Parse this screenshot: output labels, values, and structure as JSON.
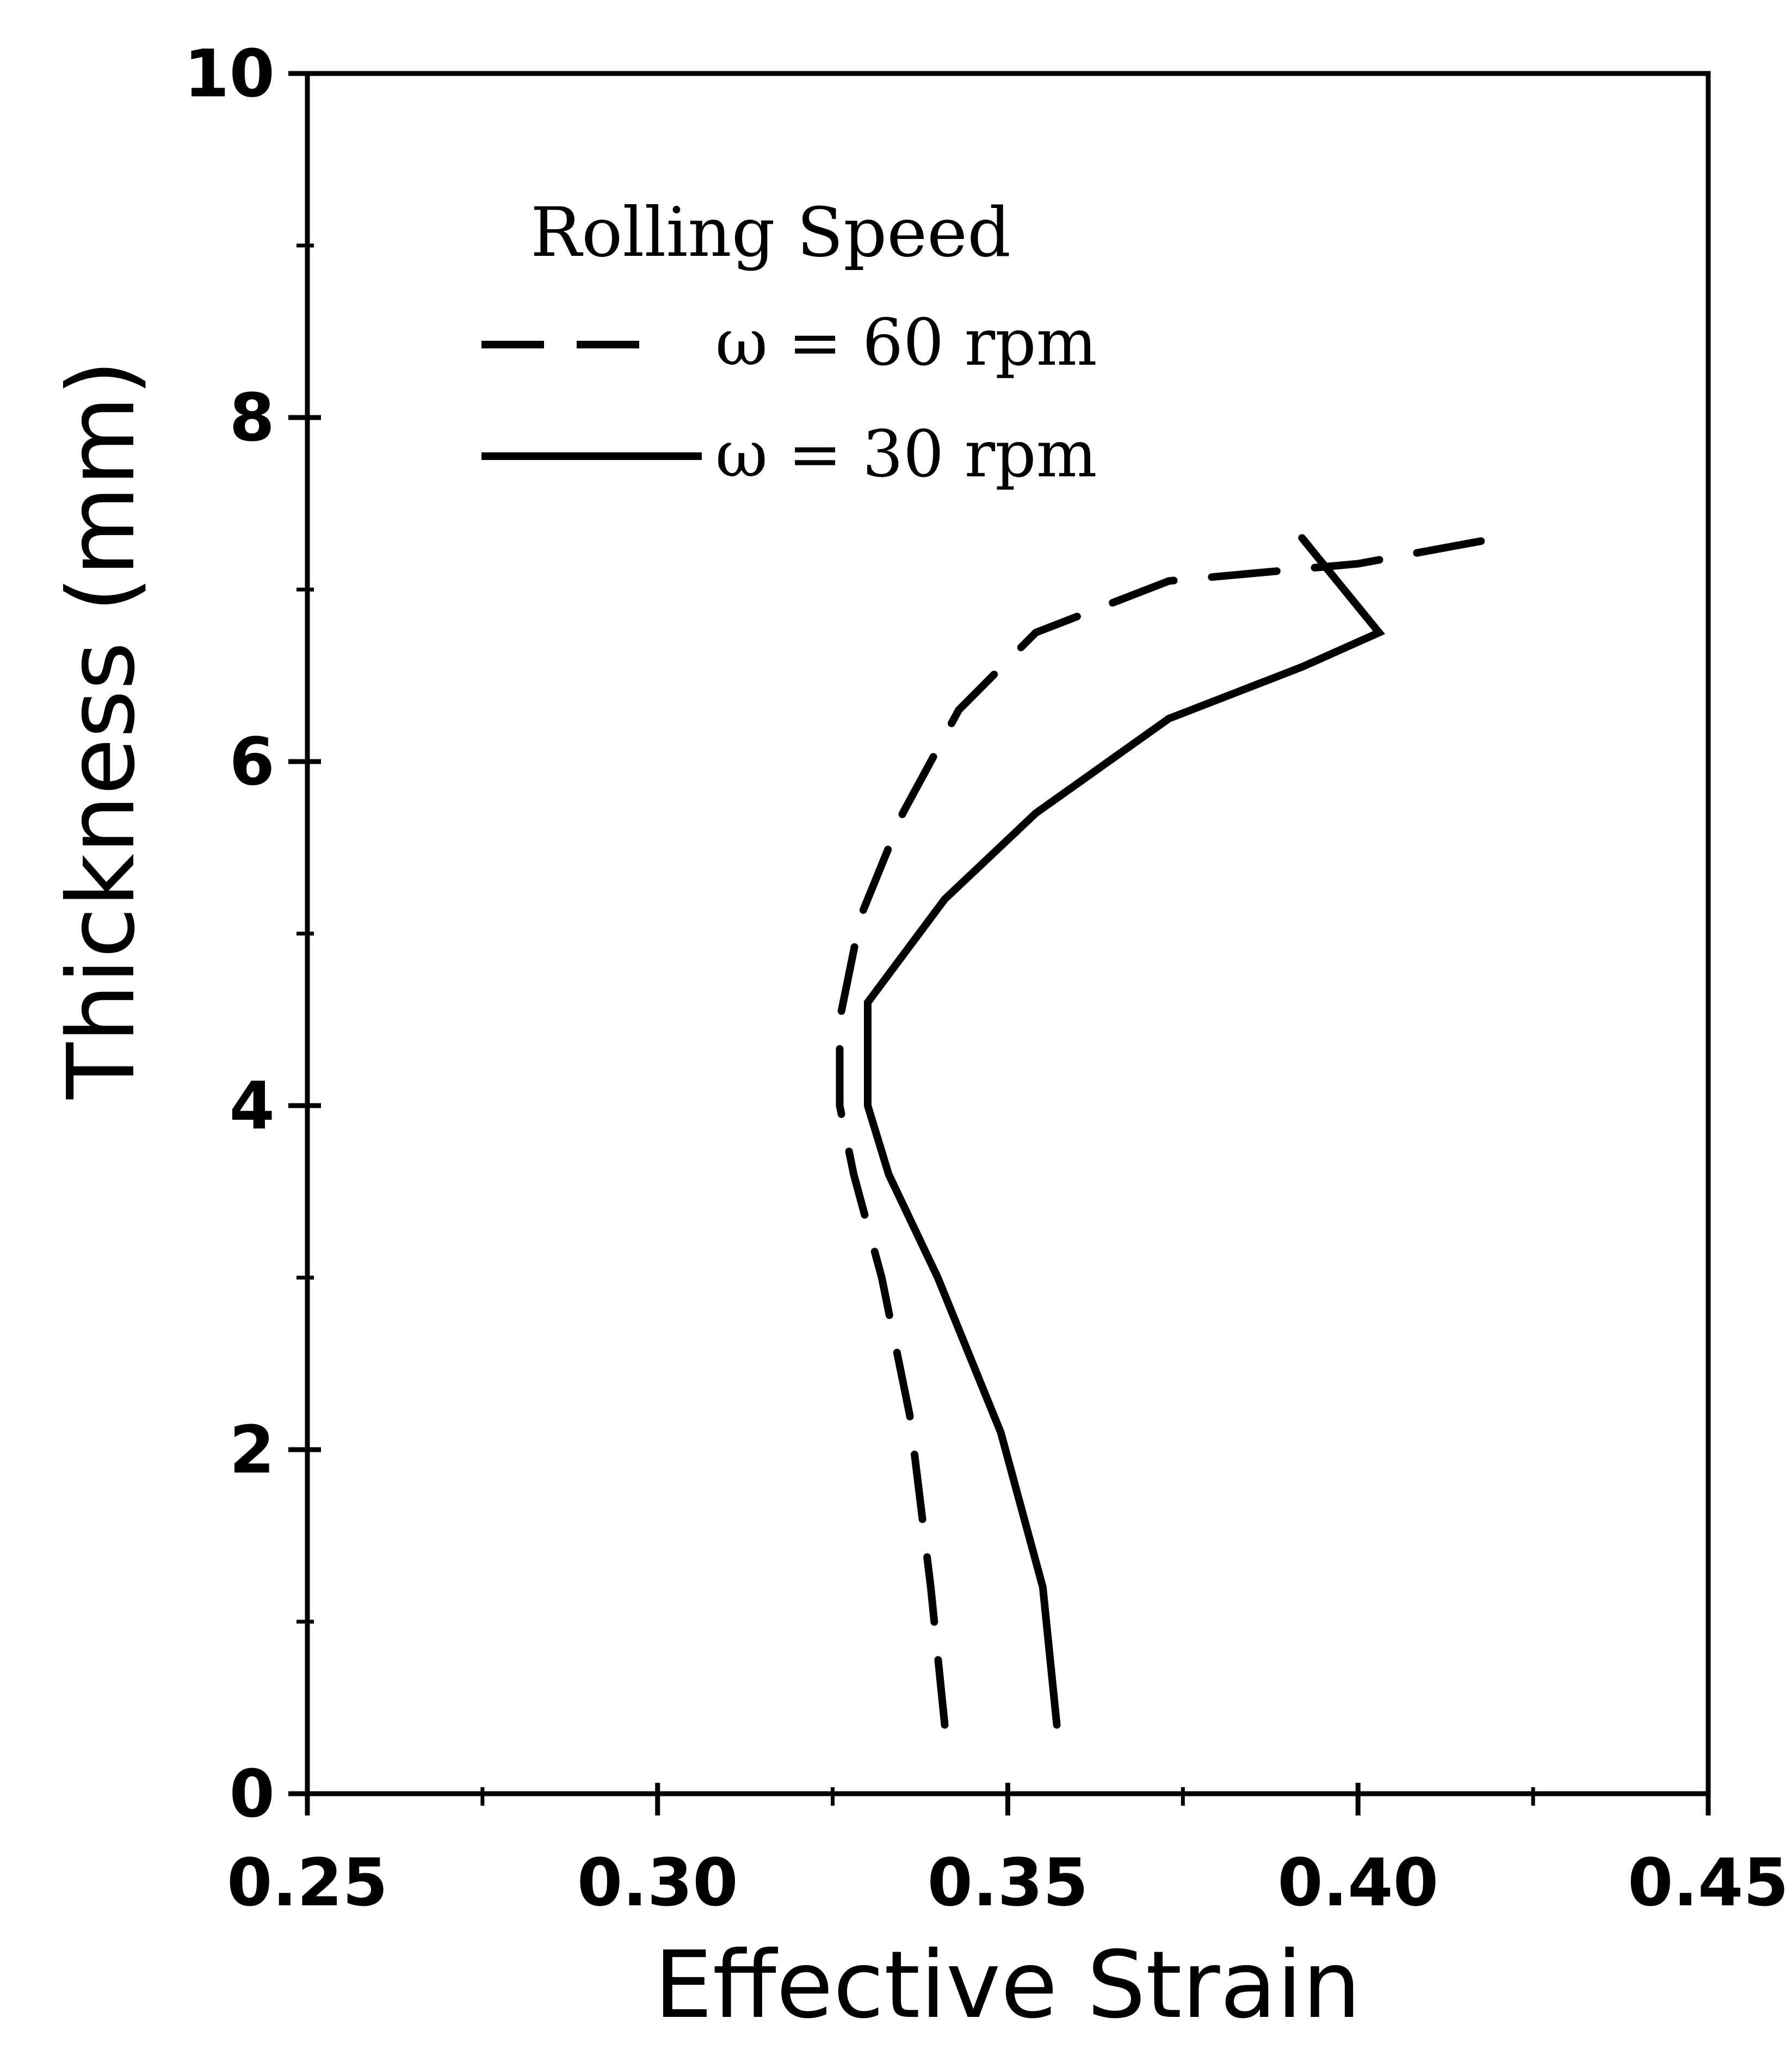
{
  "chart_data": {
    "type": "line",
    "title": "",
    "xlabel": "Effective Strain",
    "ylabel": "Thickness (mm)",
    "xlim": [
      0.25,
      0.45
    ],
    "ylim": [
      0,
      10
    ],
    "x_ticks": [
      0.25,
      0.3,
      0.35,
      0.4,
      0.45
    ],
    "x_tick_labels": [
      "0.25",
      "0.30",
      "0.35",
      "0.40",
      "0.45"
    ],
    "y_ticks": [
      0,
      2,
      4,
      6,
      8,
      10
    ],
    "y_tick_labels": [
      "0",
      "2",
      "4",
      "6",
      "8",
      "10"
    ],
    "grid": false,
    "legend": {
      "title": "Rolling Speed",
      "placement": "top-left"
    },
    "series": [
      {
        "name": "ω = 60 rpm",
        "style": "dashed",
        "color": "#000000",
        "points": [
          {
            "x": 0.341,
            "y": 0.4
          },
          {
            "x": 0.339,
            "y": 1.2
          },
          {
            "x": 0.336,
            "y": 2.2
          },
          {
            "x": 0.332,
            "y": 3.0
          },
          {
            "x": 0.328,
            "y": 3.6
          },
          {
            "x": 0.326,
            "y": 4.0
          },
          {
            "x": 0.326,
            "y": 4.5
          },
          {
            "x": 0.329,
            "y": 5.1
          },
          {
            "x": 0.335,
            "y": 5.7
          },
          {
            "x": 0.343,
            "y": 6.3
          },
          {
            "x": 0.354,
            "y": 6.75
          },
          {
            "x": 0.373,
            "y": 7.05
          },
          {
            "x": 0.4,
            "y": 7.15
          },
          {
            "x": 0.42,
            "y": 7.3
          }
        ]
      },
      {
        "name": "ω = 30 rpm",
        "style": "solid",
        "color": "#000000",
        "points": [
          {
            "x": 0.357,
            "y": 0.4
          },
          {
            "x": 0.355,
            "y": 1.2
          },
          {
            "x": 0.349,
            "y": 2.1
          },
          {
            "x": 0.34,
            "y": 3.0
          },
          {
            "x": 0.333,
            "y": 3.6
          },
          {
            "x": 0.33,
            "y": 4.0
          },
          {
            "x": 0.33,
            "y": 4.6
          },
          {
            "x": 0.341,
            "y": 5.2
          },
          {
            "x": 0.354,
            "y": 5.7
          },
          {
            "x": 0.373,
            "y": 6.25
          },
          {
            "x": 0.392,
            "y": 6.55
          },
          {
            "x": 0.403,
            "y": 6.75
          },
          {
            "x": 0.392,
            "y": 7.3
          }
        ]
      }
    ]
  }
}
